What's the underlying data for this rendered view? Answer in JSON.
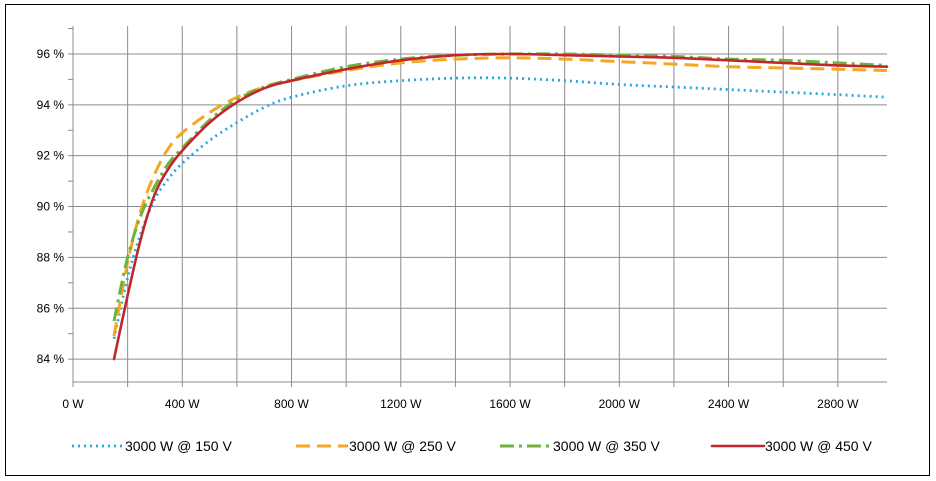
{
  "chart_data": {
    "type": "line",
    "title": "",
    "xlabel": "",
    "ylabel": "",
    "xlim": [
      0,
      2980
    ],
    "ylim": [
      83.1,
      97.1
    ],
    "x_ticks": [
      {
        "value": 0,
        "label": "0 W"
      },
      {
        "value": 400,
        "label": "400 W"
      },
      {
        "value": 800,
        "label": "800 W"
      },
      {
        "value": 1200,
        "label": "1200 W"
      },
      {
        "value": 1600,
        "label": "1600 W"
      },
      {
        "value": 2000,
        "label": "2000 W"
      },
      {
        "value": 2400,
        "label": "2400 W"
      },
      {
        "value": 2800,
        "label": "2800 W"
      }
    ],
    "x_minor_grid": [
      200,
      600,
      1000,
      1400,
      1800,
      2200,
      2600
    ],
    "y_ticks": [
      {
        "value": 84,
        "label": "84 %"
      },
      {
        "value": 86,
        "label": "86 %"
      },
      {
        "value": 88,
        "label": "88 %"
      },
      {
        "value": 90,
        "label": "90 %"
      },
      {
        "value": 92,
        "label": "92 %"
      },
      {
        "value": 94,
        "label": "94 %"
      },
      {
        "value": 96,
        "label": "96 %"
      }
    ],
    "y_minor_ticks": [
      85,
      87,
      89,
      91,
      93,
      95,
      97
    ],
    "grid": true,
    "legend_position": "bottom",
    "series": [
      {
        "name": "3000 W @ 150 V",
        "color": "#2aa7df",
        "dash": "dotted",
        "x": [
          150,
          200,
          250,
          300,
          350,
          400,
          500,
          600,
          700,
          800,
          1000,
          1200,
          1400,
          1600,
          1800,
          2000,
          2200,
          2400,
          2600,
          2800,
          2980
        ],
        "y": [
          84.8,
          87.2,
          89.0,
          90.3,
          91.1,
          91.7,
          92.6,
          93.3,
          93.9,
          94.3,
          94.75,
          94.95,
          95.05,
          95.05,
          94.95,
          94.8,
          94.7,
          94.6,
          94.5,
          94.4,
          94.3
        ]
      },
      {
        "name": "3000 W @ 250 V",
        "color": "#f5a623",
        "dash": "dashed",
        "x": [
          150,
          200,
          250,
          300,
          350,
          400,
          500,
          600,
          700,
          800,
          1000,
          1200,
          1400,
          1600,
          1800,
          2000,
          2200,
          2400,
          2600,
          2800,
          2980
        ],
        "y": [
          84.9,
          87.8,
          89.9,
          91.3,
          92.3,
          92.9,
          93.7,
          94.3,
          94.7,
          94.95,
          95.35,
          95.65,
          95.8,
          95.85,
          95.8,
          95.7,
          95.6,
          95.5,
          95.45,
          95.4,
          95.35
        ]
      },
      {
        "name": "3000 W @ 350 V",
        "color": "#6db33f",
        "dash": "dashdot",
        "x": [
          150,
          200,
          250,
          300,
          350,
          400,
          500,
          600,
          700,
          800,
          1000,
          1200,
          1400,
          1600,
          1800,
          2000,
          2200,
          2400,
          2600,
          2800,
          2980
        ],
        "y": [
          85.5,
          88.0,
          89.7,
          90.8,
          91.7,
          92.3,
          93.4,
          94.2,
          94.7,
          95.0,
          95.5,
          95.8,
          95.95,
          96.0,
          96.0,
          95.95,
          95.9,
          95.8,
          95.75,
          95.65,
          95.55
        ]
      },
      {
        "name": "3000 W @ 450 V",
        "color": "#c0272d",
        "dash": "solid",
        "x": [
          150,
          200,
          250,
          300,
          350,
          400,
          500,
          600,
          700,
          800,
          1000,
          1200,
          1400,
          1600,
          1800,
          2000,
          2200,
          2400,
          2600,
          2800,
          2980
        ],
        "y": [
          84.0,
          86.5,
          88.8,
          90.5,
          91.5,
          92.2,
          93.3,
          94.1,
          94.65,
          94.95,
          95.4,
          95.75,
          95.95,
          96.0,
          95.95,
          95.9,
          95.85,
          95.75,
          95.65,
          95.55,
          95.5
        ]
      }
    ]
  }
}
